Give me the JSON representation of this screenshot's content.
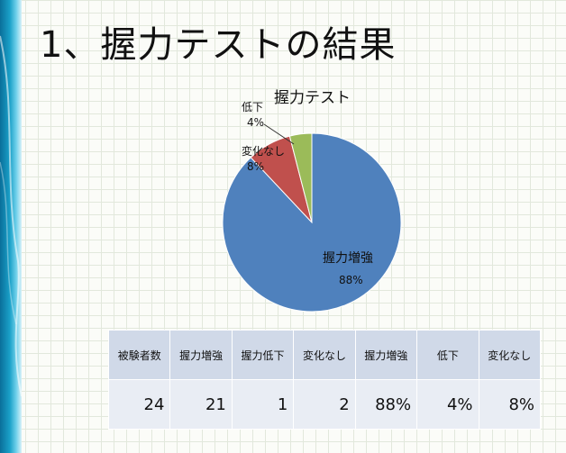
{
  "slide": {
    "title": "1、握力テストの結果"
  },
  "chart_data": {
    "type": "pie",
    "title": "握力テスト",
    "slices": [
      {
        "label": "握力増強",
        "percent": "88%",
        "value": 88,
        "color": "#4f81bd"
      },
      {
        "label": "変化なし",
        "percent": "8%",
        "value": 8,
        "color": "#c0504d"
      },
      {
        "label": "低下",
        "percent": "4%",
        "value": 4,
        "color": "#9bbb59"
      }
    ]
  },
  "table": {
    "headers": [
      "被験者数",
      "握力増強",
      "握力低下",
      "変化なし",
      "握力増強",
      "低下",
      "変化なし"
    ],
    "values": [
      "24",
      "21",
      "1",
      "2",
      "88%",
      "4%",
      "8%"
    ]
  }
}
